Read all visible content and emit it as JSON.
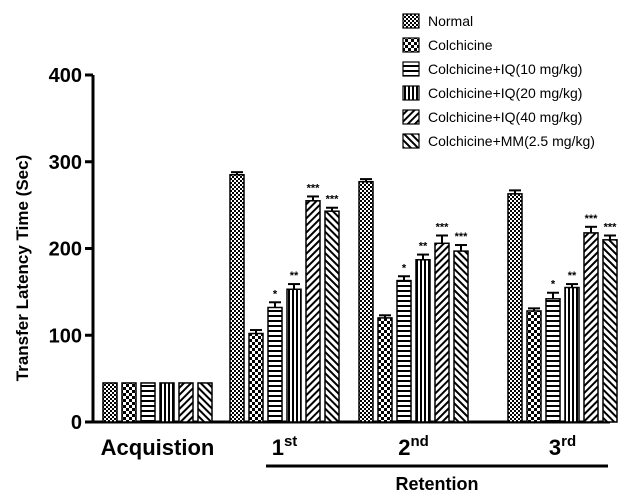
{
  "chart_data": {
    "type": "bar",
    "ylabel": "Transfer Latency Time (Sec)",
    "xlabel": "",
    "ylim": [
      0,
      400
    ],
    "yticks": [
      "0",
      "100",
      "200",
      "300",
      "400"
    ],
    "legend_position": "top-right",
    "categories": [
      "Acquistion",
      "1st",
      "2nd",
      "3rd"
    ],
    "category_labels": [
      {
        "main": "Acquistion",
        "sup": ""
      },
      {
        "main": "1",
        "sup": "st"
      },
      {
        "main": "2",
        "sup": "nd"
      },
      {
        "main": "3",
        "sup": "rd"
      }
    ],
    "group_bracket": {
      "label": "Retention",
      "spans": [
        "1st",
        "2nd",
        "3rd"
      ]
    },
    "series": [
      {
        "name": "Normal",
        "pattern": "checker-dense",
        "values": [
          45,
          285,
          277,
          263
        ],
        "errors": [
          0,
          3,
          3,
          4
        ],
        "marks": [
          "",
          "",
          "",
          ""
        ]
      },
      {
        "name": "Colchicine",
        "pattern": "checker",
        "values": [
          45,
          102,
          120,
          128
        ],
        "errors": [
          0,
          4,
          3,
          3
        ],
        "marks": [
          "",
          "",
          "",
          ""
        ]
      },
      {
        "name": "Colchicine+IQ(10 mg/kg)",
        "pattern": "horizontal",
        "values": [
          45,
          132,
          163,
          142
        ],
        "errors": [
          0,
          6,
          5,
          7
        ],
        "marks": [
          "",
          "*",
          "*",
          "*"
        ]
      },
      {
        "name": "Colchicine+IQ(20 mg/kg)",
        "pattern": "vertical",
        "values": [
          45,
          153,
          187,
          155
        ],
        "errors": [
          0,
          6,
          6,
          4
        ],
        "marks": [
          "",
          "**",
          "**",
          "**"
        ]
      },
      {
        "name": "Colchicine+IQ(40 mg/kg)",
        "pattern": "diag-right",
        "values": [
          45,
          255,
          206,
          218
        ],
        "errors": [
          0,
          5,
          9,
          7
        ],
        "marks": [
          "",
          "***",
          "***",
          "***"
        ]
      },
      {
        "name": "Colchicine+MM(2.5 mg/kg)",
        "pattern": "diag-left",
        "values": [
          45,
          243,
          197,
          210
        ],
        "errors": [
          0,
          4,
          7,
          5
        ],
        "marks": [
          "",
          "***",
          "***",
          "***"
        ]
      }
    ]
  }
}
